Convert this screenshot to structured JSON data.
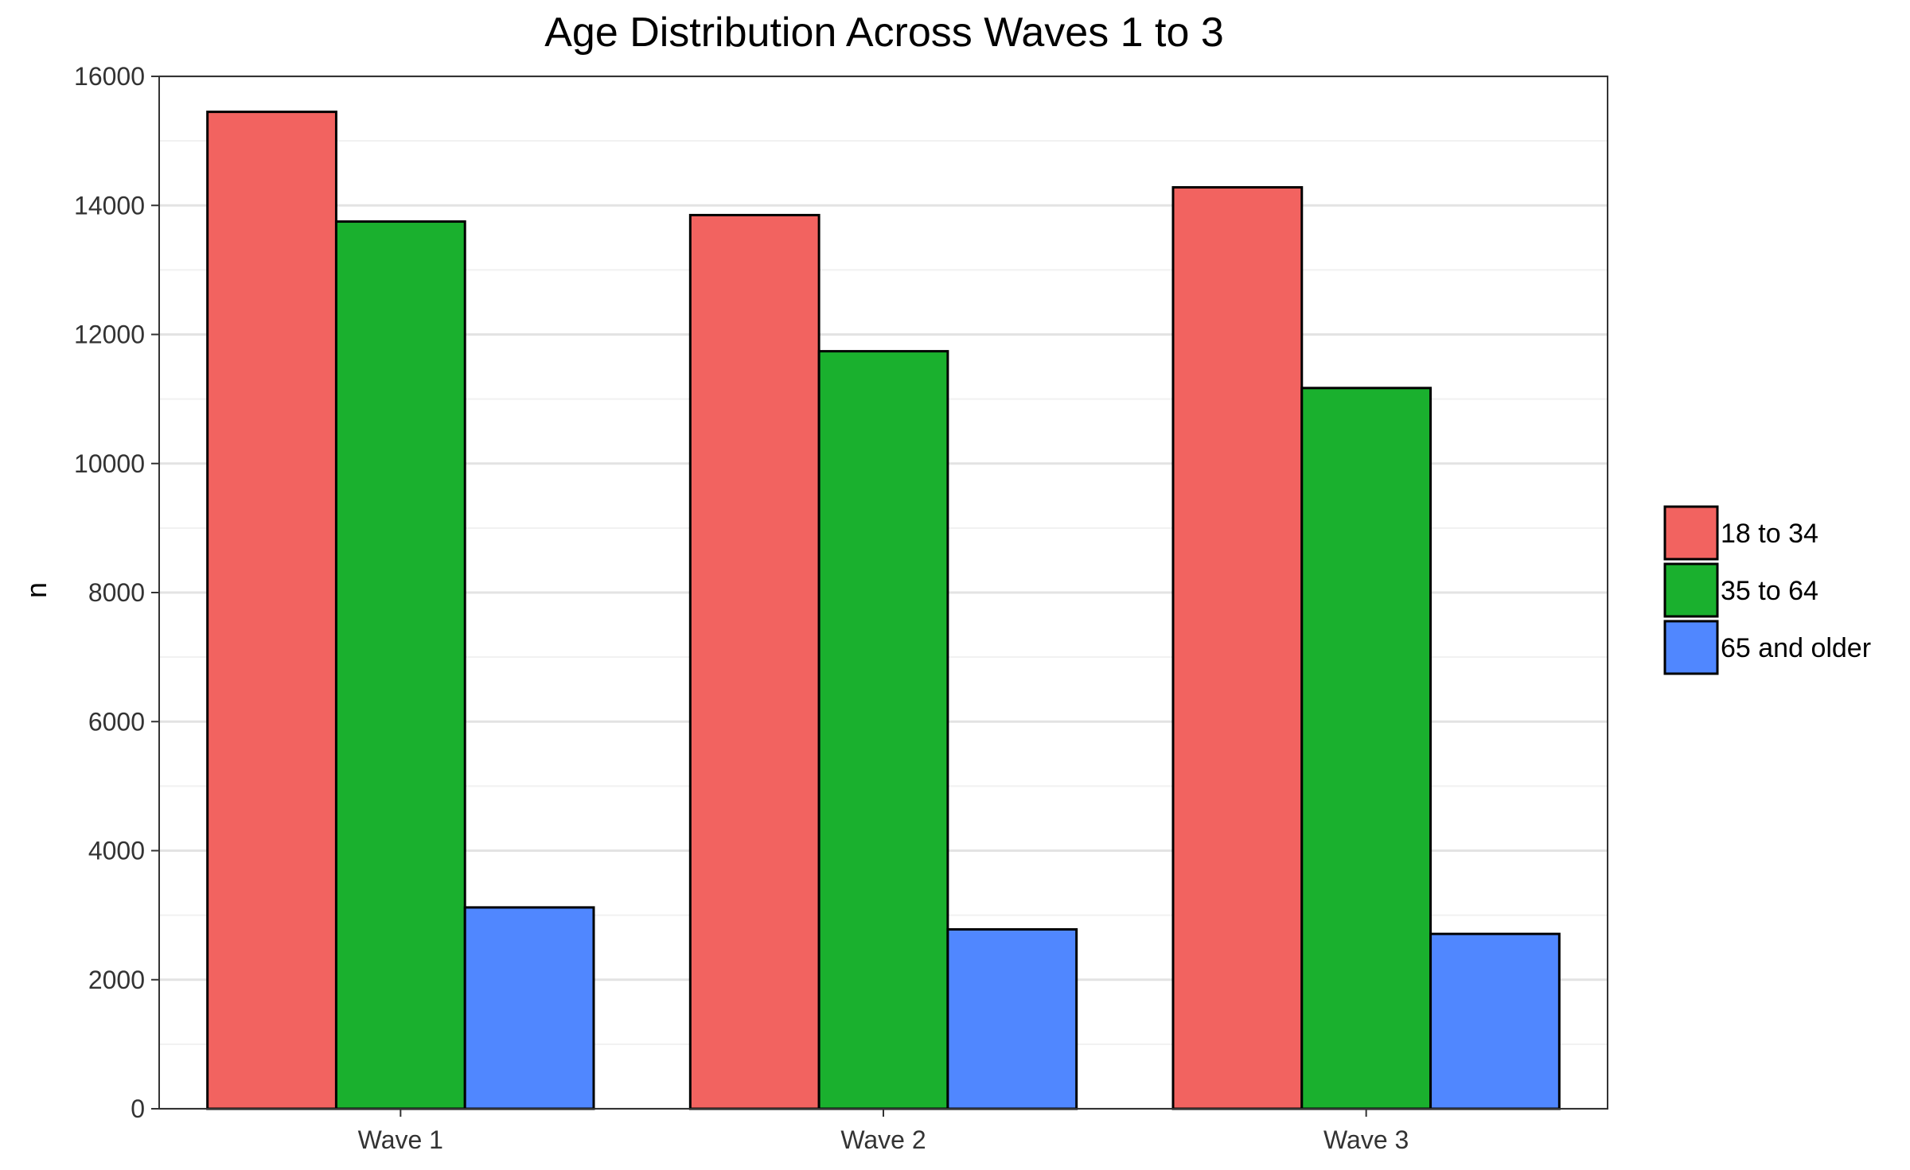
{
  "chart_data": {
    "type": "bar",
    "title": "Age Distribution Across Waves 1 to 3",
    "xlabel": "",
    "ylabel": "n",
    "categories": [
      "Wave 1",
      "Wave 2",
      "Wave 3"
    ],
    "ylim": [
      0,
      16000
    ],
    "yticks": [
      0,
      2000,
      4000,
      6000,
      8000,
      10000,
      12000,
      14000,
      16000
    ],
    "grid": true,
    "legend_position": "right",
    "series": [
      {
        "name": "18 to 34",
        "color": "#F26360",
        "values": [
          15450,
          13850,
          14280
        ]
      },
      {
        "name": "35 to 64",
        "color": "#1AB02E",
        "values": [
          13750,
          11740,
          11170
        ]
      },
      {
        "name": "65 and older",
        "color": "#5087FF",
        "values": [
          3120,
          2780,
          2710
        ]
      }
    ]
  }
}
